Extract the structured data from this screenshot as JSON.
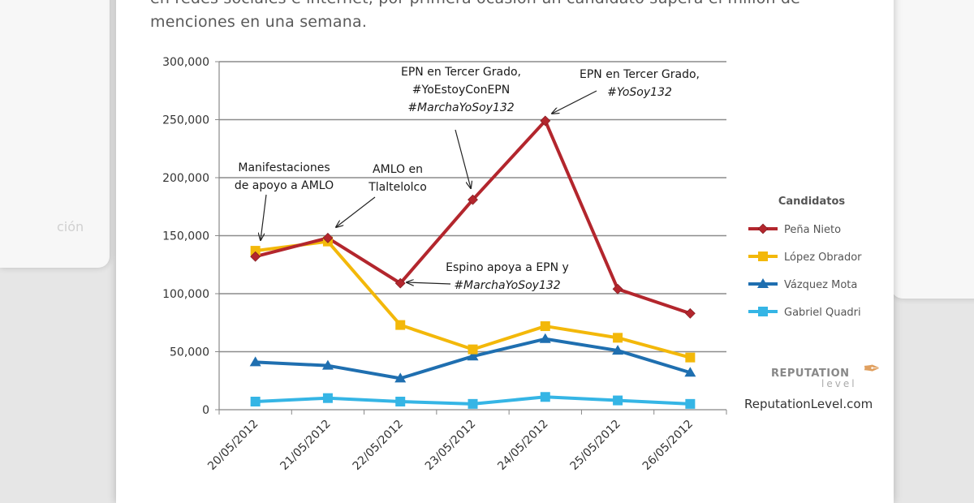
{
  "intro_text": "en redes sociales e internet, por primera ocasión un candidato supera el millón de menciones en una semana.",
  "left_ghost_text": "ción",
  "chart_data": {
    "type": "line",
    "title": "",
    "xlabel": "",
    "ylabel": "",
    "x": [
      "20/05/2012",
      "21/05/2012",
      "22/05/2012",
      "23/05/2012",
      "24/05/2012",
      "25/05/2012",
      "26/05/2012"
    ],
    "ylim": [
      0,
      300000
    ],
    "yticks": [
      "0",
      "50,000",
      "100,000",
      "150,000",
      "200,000",
      "250,000",
      "300,000"
    ],
    "grid": true,
    "legend_title": "Candidatos",
    "legend_position": "right",
    "series": [
      {
        "name": "Peña Nieto",
        "color": "#b3262d",
        "marker": "diamond",
        "values": [
          132000,
          148000,
          109000,
          181000,
          249000,
          104000,
          83000
        ]
      },
      {
        "name": "López Obrador",
        "color": "#f3b80a",
        "marker": "square",
        "values": [
          137000,
          145000,
          73000,
          52000,
          72000,
          62000,
          45000
        ]
      },
      {
        "name": "Vázquez Mota",
        "color": "#1f6fb0",
        "marker": "triangle",
        "values": [
          41000,
          38000,
          27000,
          46000,
          61000,
          51000,
          32000
        ]
      },
      {
        "name": "Gabriel Quadri",
        "color": "#35b5e5",
        "marker": "square",
        "values": [
          7000,
          10000,
          7000,
          5000,
          11000,
          8000,
          5000
        ]
      }
    ],
    "annotations": [
      {
        "lines": [
          "Manifestaciones",
          "de apoyo a AMLO"
        ],
        "italic": [
          false,
          false
        ]
      },
      {
        "lines": [
          "AMLO en",
          "Tlaltelolco"
        ],
        "italic": [
          false,
          false
        ]
      },
      {
        "lines": [
          "EPN en Tercer Grado,",
          "#YoEstoyConEPN",
          "#MarchaYoSoy132"
        ],
        "italic": [
          false,
          false,
          true
        ]
      },
      {
        "lines": [
          "EPN en Tercer Grado,",
          "#YoSoy132"
        ],
        "italic": [
          false,
          true
        ]
      },
      {
        "lines": [
          "Espino apoya a EPN y",
          "#MarchaYoSoy132"
        ],
        "italic": [
          false,
          true
        ]
      }
    ]
  },
  "logo": {
    "brand": "REPUTATION",
    "sub": "level",
    "url": "ReputationLevel.com"
  },
  "colors": {
    "grid": "#8c8c8c",
    "axis_text": "#333333"
  }
}
